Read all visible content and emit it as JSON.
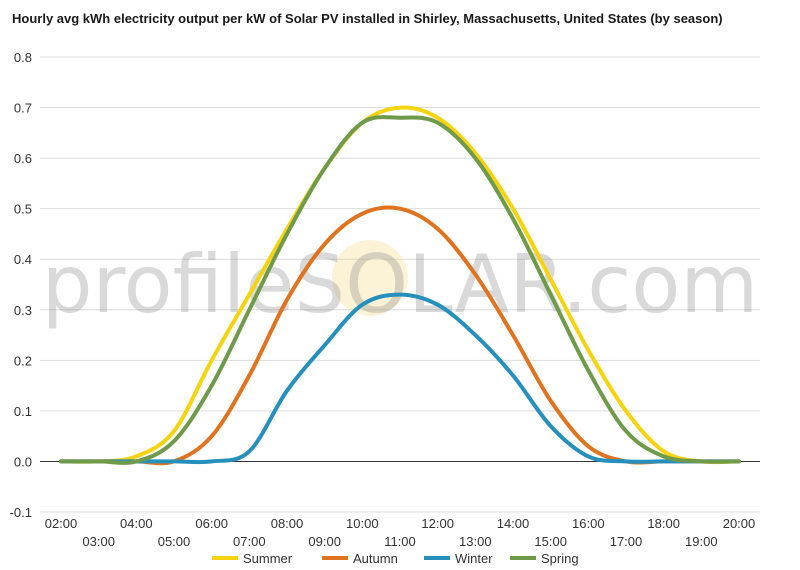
{
  "chart_data": {
    "type": "line",
    "title": "Hourly avg kWh electricity output per kW of Solar PV installed in Shirley, Massachusetts, United States (by season)",
    "xlabel": "",
    "ylabel": "",
    "ylim": [
      -0.1,
      0.8
    ],
    "yticks": [
      "-0.1",
      "0.0",
      "0.1",
      "0.2",
      "0.3",
      "0.4",
      "0.5",
      "0.6",
      "0.7",
      "0.8"
    ],
    "x": [
      "02:00",
      "03:00",
      "04:00",
      "05:00",
      "06:00",
      "07:00",
      "08:00",
      "09:00",
      "10:00",
      "11:00",
      "12:00",
      "13:00",
      "14:00",
      "15:00",
      "16:00",
      "17:00",
      "18:00",
      "19:00",
      "20:00"
    ],
    "grid": true,
    "legend_position": "bottom",
    "watermark": "profileSOLAR.com",
    "series": [
      {
        "name": "Summer",
        "color": "#f5d40f",
        "values": [
          0.0,
          0.0,
          0.01,
          0.06,
          0.2,
          0.33,
          0.46,
          0.58,
          0.67,
          0.7,
          0.68,
          0.61,
          0.5,
          0.36,
          0.22,
          0.1,
          0.02,
          0.0,
          0.0
        ]
      },
      {
        "name": "Autumn",
        "color": "#e0731f",
        "values": [
          0.0,
          0.0,
          0.0,
          0.0,
          0.05,
          0.17,
          0.32,
          0.43,
          0.49,
          0.5,
          0.46,
          0.37,
          0.25,
          0.12,
          0.03,
          0.0,
          0.0,
          0.0,
          0.0
        ]
      },
      {
        "name": "Winter",
        "color": "#2690bd",
        "values": [
          0.0,
          0.0,
          0.0,
          0.0,
          0.0,
          0.02,
          0.14,
          0.23,
          0.31,
          0.33,
          0.31,
          0.25,
          0.17,
          0.07,
          0.01,
          0.0,
          0.0,
          0.0,
          0.0
        ]
      },
      {
        "name": "Spring",
        "color": "#6f9a4a",
        "values": [
          0.0,
          0.0,
          0.0,
          0.04,
          0.15,
          0.3,
          0.45,
          0.58,
          0.67,
          0.68,
          0.67,
          0.6,
          0.48,
          0.33,
          0.18,
          0.06,
          0.01,
          0.0,
          0.0
        ]
      }
    ]
  }
}
